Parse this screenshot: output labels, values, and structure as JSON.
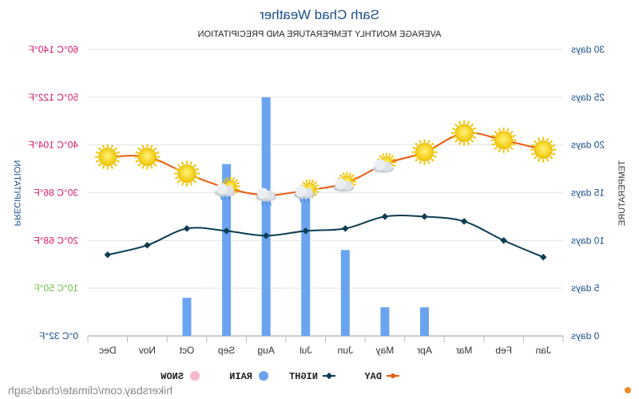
{
  "title": "Sarh Chad Weather",
  "subtitle": "AVERAGE MONTHLY TEMPERATURE AND PRECIPITATION",
  "y_left_label": "PRECIPITATION",
  "y_right_label": "TEMPERATURE",
  "source": "hikersbay.com/climate/chad/sagh",
  "legend": [
    {
      "name": "DAY",
      "color": "#e8590c"
    },
    {
      "name": "NIGHT",
      "color": "#0b3d52"
    },
    {
      "name": "RAIN",
      "color": "#6aa4f0"
    },
    {
      "name": "SNOW",
      "color": "#f7b6cf"
    }
  ],
  "chart_data": {
    "type": "bar+line",
    "mirrored": true,
    "categories": [
      "Jan",
      "Feb",
      "Mar",
      "Apr",
      "May",
      "Jun",
      "Jul",
      "Aug",
      "Sep",
      "Oct",
      "Nov",
      "Dec"
    ],
    "left_axis": {
      "ticks": [
        "0 days",
        "5 days",
        "10 days",
        "15 days",
        "20 days",
        "25 days",
        "30 days"
      ],
      "range": [
        0,
        30
      ]
    },
    "right_axis": {
      "ticks": [
        "0°C 32°F",
        "10°C 50°F",
        "20°C 68°F",
        "30°C 86°F",
        "40°C 104°F",
        "50°C 122°F",
        "60°C 140°F"
      ],
      "colors": [
        "#1a4f8a",
        "#6cbf4a",
        "#d6186f",
        "#d6186f",
        "#d6186f",
        "#d6186f",
        "#d6186f"
      ],
      "range": [
        0,
        60
      ]
    },
    "series": [
      {
        "name": "DAY",
        "type": "line",
        "axis": "right",
        "color": "#e8590c",
        "values": [
          39,
          41,
          42.5,
          38.5,
          36,
          32,
          30.5,
          29.5,
          31,
          34,
          37.5,
          37.5
        ]
      },
      {
        "name": "NIGHT",
        "type": "line",
        "axis": "right",
        "color": "#0b3d52",
        "values": [
          16.5,
          20,
          24,
          25,
          25,
          22.5,
          22,
          21,
          22,
          22.5,
          19,
          17
        ]
      },
      {
        "name": "RAIN",
        "type": "bar",
        "axis": "left",
        "color": "#6aa4f0",
        "values": [
          0,
          0,
          0,
          3,
          3,
          9,
          15,
          25,
          18,
          4,
          0,
          0
        ]
      }
    ],
    "weather_icons": [
      "sun",
      "sun",
      "sun",
      "sun",
      "sun-cloud",
      "sun-cloud",
      "sun-cloud-rain",
      "cloud-rain",
      "sun-cloud-rain",
      "sun",
      "sun",
      "sun"
    ]
  }
}
